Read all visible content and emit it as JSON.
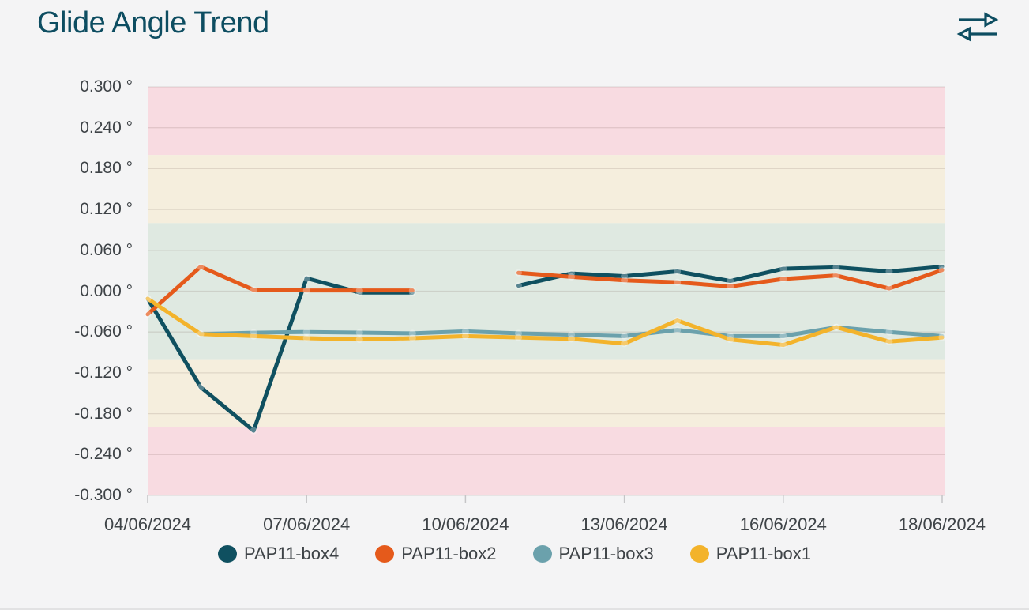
{
  "title": "Glide Angle Trend",
  "header": {
    "swap_icon": "swap-horizontal-arrows",
    "icon_color": "#0d4d61"
  },
  "colors": {
    "background": "#f4f4f5",
    "title_text": "#0d4d61",
    "axis_text": "#3e4347",
    "gridline": "rgba(110,90,80,0.16)",
    "tick_mark": "#c5c5c7",
    "marker_fill": "rgba(255,255,255,0.3)"
  },
  "chart_data": {
    "type": "line",
    "title": "Glide Angle Trend",
    "unit": "°",
    "ylim": [
      -0.3,
      0.3
    ],
    "x_point_count": 16,
    "xtick_labels": [
      "04/06/2024",
      "07/06/2024",
      "10/06/2024",
      "13/06/2024",
      "16/06/2024",
      "18/06/2024"
    ],
    "xtick_indices": [
      0,
      3,
      6,
      9,
      12,
      15
    ],
    "ytick_values": [
      0.3,
      0.24,
      0.18,
      0.12,
      0.06,
      0.0,
      -0.06,
      -0.12,
      -0.18,
      -0.24,
      -0.3
    ],
    "ytick_labels": [
      "0.300 °",
      "0.240 °",
      "0.180 °",
      "0.120 °",
      "0.060 °",
      "0.000 °",
      "-0.060 °",
      "-0.120 °",
      "-0.180 °",
      "-0.240 °",
      "-0.300 °"
    ],
    "grid": true,
    "legend_position": "bottom",
    "bands": [
      {
        "from": 0.2,
        "to": 0.3,
        "color": "#f8dbe1"
      },
      {
        "from": 0.1,
        "to": 0.2,
        "color": "#f5eedd"
      },
      {
        "from": -0.1,
        "to": 0.1,
        "color": "#dfe9e1"
      },
      {
        "from": -0.2,
        "to": -0.1,
        "color": "#f5eedd"
      },
      {
        "from": -0.3,
        "to": -0.2,
        "color": "#f8dbe1"
      }
    ],
    "series": [
      {
        "name": "PAP11-box4",
        "color": "#0f5060",
        "values": [
          -0.011,
          -0.141,
          -0.205,
          0.019,
          -0.002,
          -0.002,
          null,
          0.008,
          0.026,
          0.022,
          0.029,
          0.015,
          0.033,
          0.035,
          0.029,
          0.036
        ]
      },
      {
        "name": "PAP11-box2",
        "color": "#e55a1b",
        "values": [
          -0.034,
          0.036,
          0.002,
          0.001,
          0.001,
          0.001,
          null,
          0.027,
          0.021,
          0.016,
          0.013,
          0.007,
          0.018,
          0.023,
          0.004,
          0.031
        ]
      },
      {
        "name": "PAP11-box3",
        "color": "#6ba1ac",
        "values": [
          null,
          -0.063,
          -0.061,
          -0.06,
          -0.061,
          -0.062,
          -0.059,
          -0.062,
          -0.064,
          -0.066,
          -0.057,
          -0.066,
          -0.066,
          -0.053,
          -0.06,
          -0.066
        ]
      },
      {
        "name": "PAP11-box1",
        "color": "#f3b32b",
        "values": [
          -0.011,
          -0.063,
          -0.066,
          -0.069,
          -0.071,
          -0.069,
          -0.066,
          -0.068,
          -0.07,
          -0.077,
          -0.043,
          -0.071,
          -0.079,
          -0.053,
          -0.074,
          -0.068
        ]
      }
    ]
  }
}
